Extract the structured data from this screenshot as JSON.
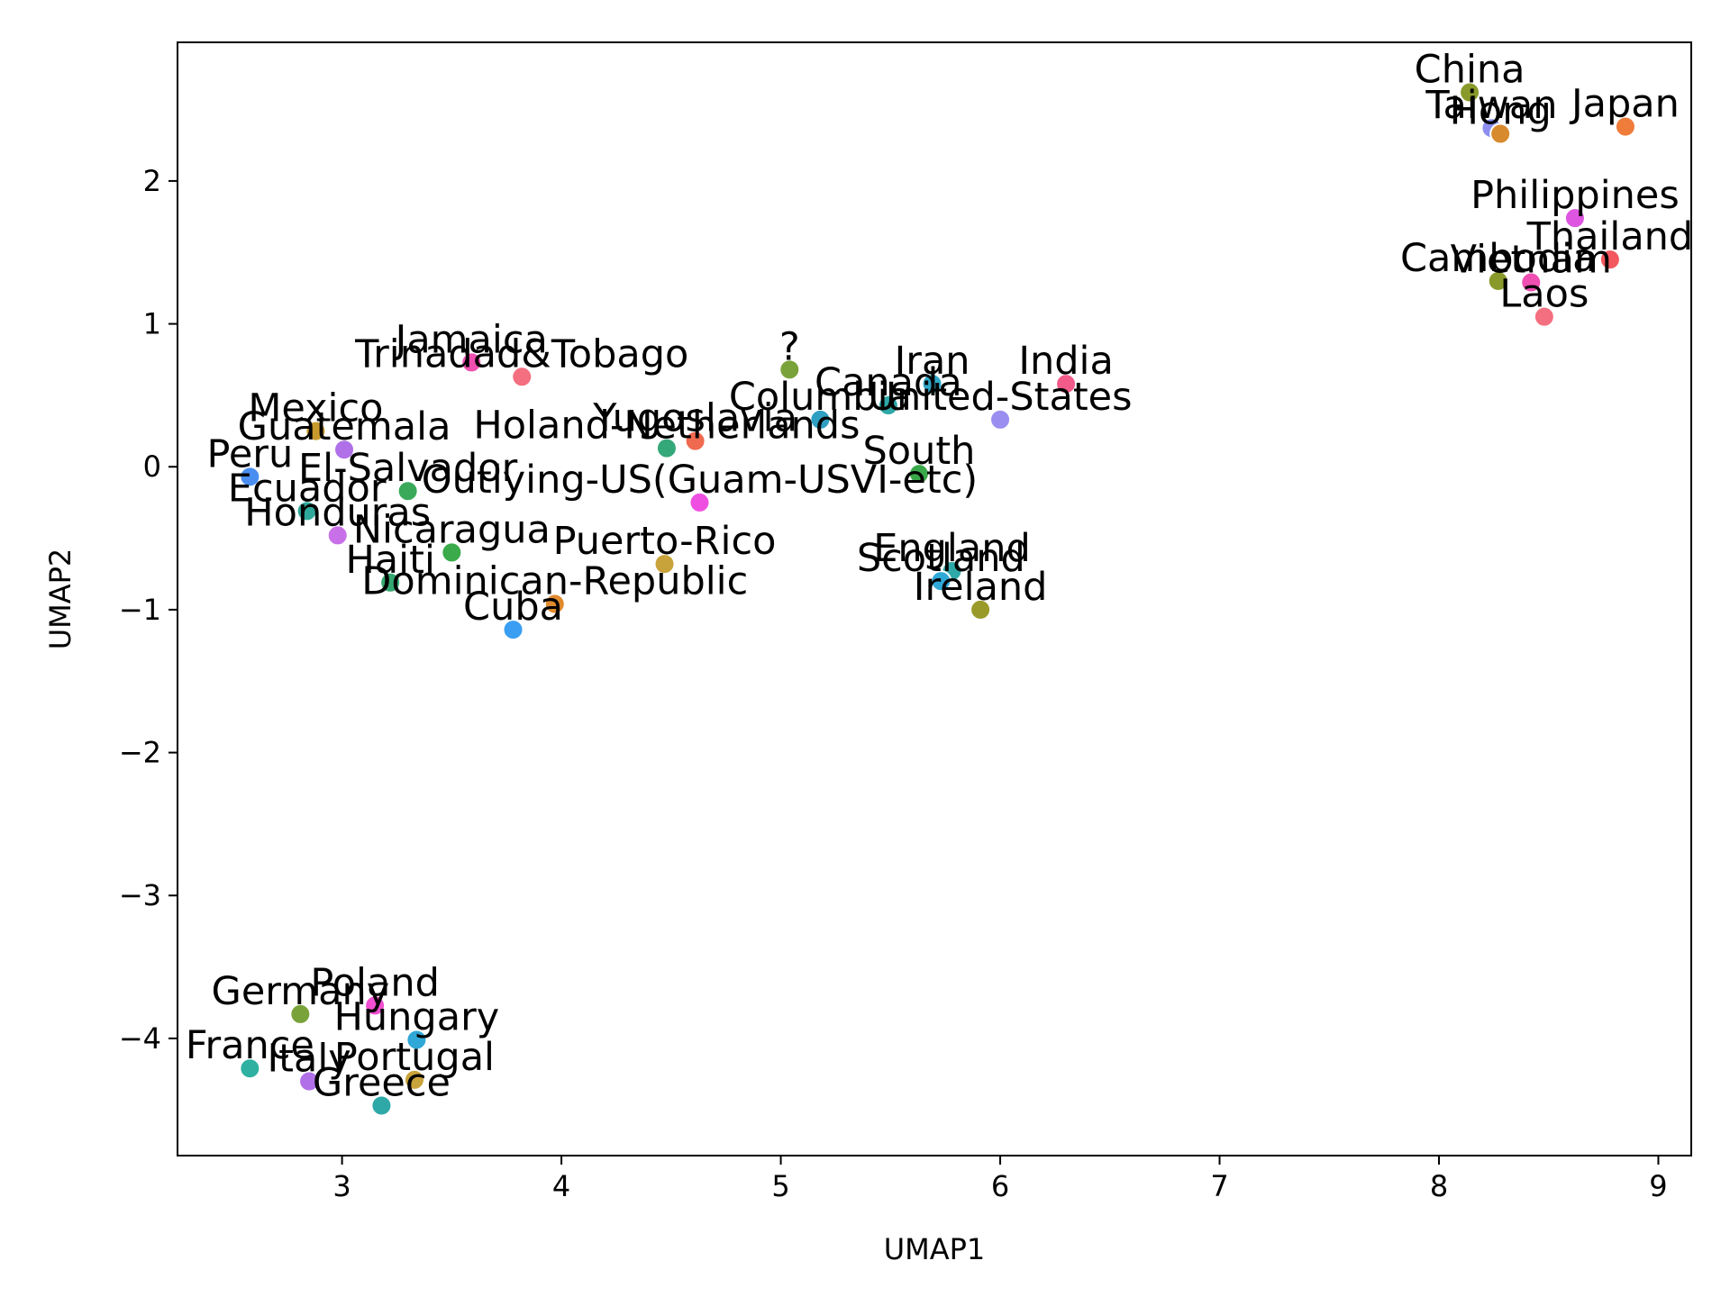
{
  "chart_data": {
    "type": "scatter",
    "xlabel": "UMAP1",
    "ylabel": "UMAP2",
    "xlim": [
      2.25,
      9.15
    ],
    "ylim": [
      -4.82,
      2.97
    ],
    "xticks": [
      3,
      4,
      5,
      6,
      7,
      8,
      9
    ],
    "yticks": [
      2,
      1,
      0,
      -1,
      -2,
      -3,
      -4
    ],
    "xtick_labels": [
      "3",
      "4",
      "5",
      "6",
      "7",
      "8",
      "9"
    ],
    "ytick_labels": [
      "2",
      "1",
      "0",
      "−1",
      "−2",
      "−3",
      "−4"
    ],
    "grid": false,
    "legend": "none",
    "points": [
      {
        "label": "China",
        "x": 8.14,
        "y": 2.62,
        "color": "#8a9a2a"
      },
      {
        "label": "Taiwan",
        "x": 8.24,
        "y": 2.37,
        "color": "#8d8ff0"
      },
      {
        "label": "Hong",
        "x": 8.28,
        "y": 2.33,
        "color": "#d78a2e"
      },
      {
        "label": "Japan",
        "x": 8.85,
        "y": 2.38,
        "color": "#f07c3a"
      },
      {
        "label": "Philippines",
        "x": 8.62,
        "y": 1.74,
        "color": "#dd55e0"
      },
      {
        "label": "Thailand",
        "x": 8.78,
        "y": 1.45,
        "color": "#f2585e"
      },
      {
        "label": "Cambodia",
        "x": 8.27,
        "y": 1.3,
        "color": "#8a9a2a"
      },
      {
        "label": "Vietnam",
        "x": 8.42,
        "y": 1.29,
        "color": "#ef4fb1"
      },
      {
        "label": "Laos",
        "x": 8.48,
        "y": 1.05,
        "color": "#f46f7f"
      },
      {
        "label": "Jamaica",
        "x": 3.59,
        "y": 0.73,
        "color": "#ef4fb1"
      },
      {
        "label": "Trinadad&Tobago",
        "x": 3.82,
        "y": 0.63,
        "color": "#f46f7f"
      },
      {
        "label": "?",
        "x": 5.04,
        "y": 0.68,
        "color": "#7aa23a"
      },
      {
        "label": "Iran",
        "x": 5.69,
        "y": 0.58,
        "color": "#2fa8c8"
      },
      {
        "label": "India",
        "x": 6.3,
        "y": 0.58,
        "color": "#f25a8a"
      },
      {
        "label": "Canada",
        "x": 5.49,
        "y": 0.43,
        "color": "#2fa8a8"
      },
      {
        "label": "Columbia",
        "x": 5.18,
        "y": 0.33,
        "color": "#2f9fc2"
      },
      {
        "label": "United-States",
        "x": 6.0,
        "y": 0.33,
        "color": "#9a8ff0"
      },
      {
        "label": "Mexico",
        "x": 2.88,
        "y": 0.25,
        "color": "#c89a2e"
      },
      {
        "label": "Guatemala",
        "x": 3.01,
        "y": 0.12,
        "color": "#b070e8"
      },
      {
        "label": "Holand-Netherlands",
        "x": 4.48,
        "y": 0.13,
        "color": "#34a878"
      },
      {
        "label": "Yugoslavia",
        "x": 4.61,
        "y": 0.18,
        "color": "#f06a50"
      },
      {
        "label": "South",
        "x": 5.63,
        "y": -0.05,
        "color": "#3aa84a"
      },
      {
        "label": "Peru",
        "x": 2.58,
        "y": -0.07,
        "color": "#4a8ef2"
      },
      {
        "label": "El-Salvador",
        "x": 3.3,
        "y": -0.17,
        "color": "#3aaa5a"
      },
      {
        "label": "Outlying-US(Guam-USVI-etc)",
        "x": 4.63,
        "y": -0.25,
        "color": "#ef4fe0"
      },
      {
        "label": "Ecuador",
        "x": 2.84,
        "y": -0.31,
        "color": "#2fa89a"
      },
      {
        "label": "Honduras",
        "x": 2.98,
        "y": -0.48,
        "color": "#c870e8"
      },
      {
        "label": "Nicaragua",
        "x": 3.5,
        "y": -0.6,
        "color": "#3aaa4a"
      },
      {
        "label": "Puerto-Rico",
        "x": 4.47,
        "y": -0.68,
        "color": "#c8a23a"
      },
      {
        "label": "England",
        "x": 5.78,
        "y": -0.73,
        "color": "#2fa8a8"
      },
      {
        "label": "Scotland",
        "x": 5.73,
        "y": -0.8,
        "color": "#2fa8d8"
      },
      {
        "label": "Haiti",
        "x": 3.22,
        "y": -0.81,
        "color": "#34a870"
      },
      {
        "label": "Dominican-Republic",
        "x": 3.97,
        "y": -0.96,
        "color": "#e08a2e"
      },
      {
        "label": "Ireland",
        "x": 5.91,
        "y": -1.0,
        "color": "#9a9a2a"
      },
      {
        "label": "Cuba",
        "x": 3.78,
        "y": -1.14,
        "color": "#3a9ef2"
      },
      {
        "label": "Germany",
        "x": 2.81,
        "y": -3.83,
        "color": "#7aa23a"
      },
      {
        "label": "Poland",
        "x": 3.15,
        "y": -3.77,
        "color": "#ef4fd0"
      },
      {
        "label": "Hungary",
        "x": 3.34,
        "y": -4.01,
        "color": "#2fa8d8"
      },
      {
        "label": "France",
        "x": 2.58,
        "y": -4.21,
        "color": "#2fb0a0"
      },
      {
        "label": "Italy",
        "x": 2.85,
        "y": -4.3,
        "color": "#b070e8"
      },
      {
        "label": "Portugal",
        "x": 3.33,
        "y": -4.29,
        "color": "#c8a23a"
      },
      {
        "label": "Greece",
        "x": 3.18,
        "y": -4.47,
        "color": "#2fa8a8"
      }
    ]
  }
}
